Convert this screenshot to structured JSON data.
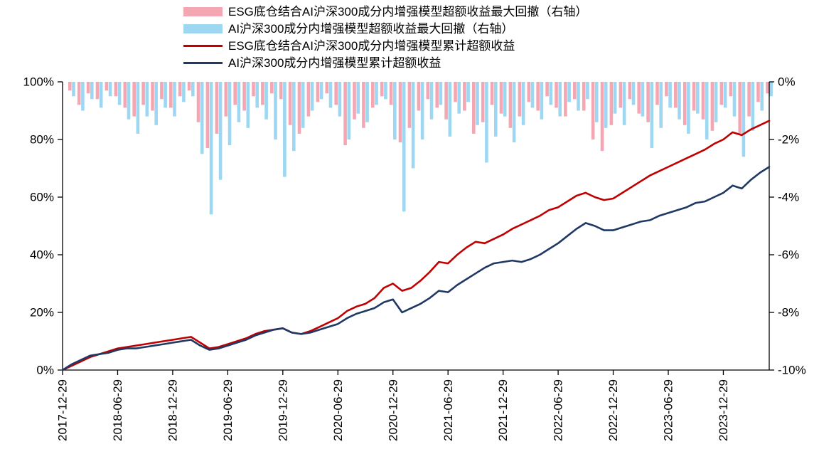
{
  "chart_data": {
    "type": "combo",
    "title": "",
    "legend_position": "top",
    "grid": false,
    "x": [
      "2017-12",
      "2018-01",
      "2018-02",
      "2018-03",
      "2018-04",
      "2018-05",
      "2018-06",
      "2018-07",
      "2018-08",
      "2018-09",
      "2018-10",
      "2018-11",
      "2018-12",
      "2019-01",
      "2019-02",
      "2019-03",
      "2019-04",
      "2019-05",
      "2019-06",
      "2019-07",
      "2019-08",
      "2019-09",
      "2019-10",
      "2019-11",
      "2019-12",
      "2020-01",
      "2020-02",
      "2020-03",
      "2020-04",
      "2020-05",
      "2020-06",
      "2020-07",
      "2020-08",
      "2020-09",
      "2020-10",
      "2020-11",
      "2020-12",
      "2021-01",
      "2021-02",
      "2021-03",
      "2021-04",
      "2021-05",
      "2021-06",
      "2021-07",
      "2021-08",
      "2021-09",
      "2021-10",
      "2021-11",
      "2021-12",
      "2022-01",
      "2022-02",
      "2022-03",
      "2022-04",
      "2022-05",
      "2022-06",
      "2022-07",
      "2022-08",
      "2022-09",
      "2022-10",
      "2022-11",
      "2022-12",
      "2023-01",
      "2023-02",
      "2023-03",
      "2023-04",
      "2023-05",
      "2023-06",
      "2023-07",
      "2023-08",
      "2023-09",
      "2023-10",
      "2023-11",
      "2023-12",
      "2024-01",
      "2024-02",
      "2024-03",
      "2024-04",
      "2024-05"
    ],
    "x_tick_labels": [
      "2017-12-29",
      "2018-06-29",
      "2018-12-29",
      "2019-06-29",
      "2019-12-29",
      "2020-06-29",
      "2020-12-29",
      "2021-06-29",
      "2021-12-29",
      "2022-06-29",
      "2022-12-29",
      "2023-06-29",
      "2023-12-29"
    ],
    "left_axis": {
      "min": 0,
      "max": 100,
      "tick_values": [
        0,
        20,
        40,
        60,
        80,
        100
      ],
      "tick_labels": [
        "0%",
        "20%",
        "40%",
        "60%",
        "80%",
        "100%"
      ]
    },
    "right_axis": {
      "min": -10,
      "max": 0,
      "tick_values": [
        0,
        -2,
        -4,
        -6,
        -8,
        -10
      ],
      "tick_labels": [
        "0%",
        "-2%",
        "-4%",
        "-6%",
        "-8%",
        "-10%"
      ]
    },
    "series": [
      {
        "id": "esg-max-drawdown",
        "name": "ESG底仓结合AI沪深300成分内增强模型超额收益最大回撤（右轴）",
        "type": "bar",
        "axis": "right",
        "color": "#F4A6B2",
        "values": [
          0,
          -0.3,
          -0.8,
          -0.4,
          -0.6,
          -0.3,
          -0.5,
          -0.9,
          -1.2,
          -0.8,
          -1.0,
          -0.6,
          -0.9,
          -0.5,
          -0.3,
          -1.4,
          -2.3,
          -1.8,
          -1.2,
          -0.8,
          -1.0,
          -0.5,
          -0.8,
          -0.4,
          -0.6,
          -1.5,
          -1.8,
          -1.2,
          -0.7,
          -0.4,
          -0.8,
          -2.2,
          -1.3,
          -1.6,
          -0.9,
          -0.5,
          -0.8,
          -2.1,
          -1.6,
          -1.0,
          -0.6,
          -0.9,
          -1.3,
          -0.7,
          -1.0,
          -1.8,
          -1.4,
          -0.8,
          -1.1,
          -1.6,
          -1.2,
          -0.7,
          -1.0,
          -0.5,
          -0.9,
          -1.2,
          -0.6,
          -1.0,
          -2.0,
          -2.4,
          -1.5,
          -0.9,
          -0.6,
          -1.1,
          -1.4,
          -0.8,
          -0.5,
          -0.9,
          -1.5,
          -1.0,
          -1.3,
          -1.7,
          -0.8,
          -0.5,
          -1.8,
          -1.2,
          -0.7,
          -0.4
        ]
      },
      {
        "id": "ai-max-drawdown",
        "name": "AI沪深300成分内增强模型超额收益最大回撤（右轴）",
        "type": "bar",
        "axis": "right",
        "color": "#9DD7F2",
        "values": [
          0,
          -0.5,
          -1.0,
          -0.6,
          -0.9,
          -0.5,
          -0.8,
          -1.3,
          -1.8,
          -1.2,
          -1.5,
          -0.9,
          -1.2,
          -0.7,
          -0.5,
          -2.5,
          -4.6,
          -3.4,
          -2.2,
          -1.4,
          -1.6,
          -0.9,
          -1.3,
          -2.0,
          -3.3,
          -2.4,
          -1.6,
          -1.0,
          -0.6,
          -0.9,
          -1.2,
          -2.0,
          -1.1,
          -1.4,
          -0.8,
          -0.6,
          -2.0,
          -4.5,
          -3.0,
          -2.0,
          -1.3,
          -0.8,
          -1.9,
          -1.1,
          -0.7,
          -1.5,
          -2.8,
          -1.9,
          -1.2,
          -2.1,
          -1.5,
          -0.9,
          -1.3,
          -0.8,
          -1.2,
          -0.7,
          -1.0,
          -0.6,
          -1.4,
          -1.6,
          -1.1,
          -1.5,
          -0.8,
          -1.2,
          -2.3,
          -1.6,
          -0.9,
          -1.3,
          -1.8,
          -1.1,
          -2.0,
          -1.4,
          -0.9,
          -1.2,
          -2.6,
          -1.7,
          -1.0,
          -0.5
        ]
      },
      {
        "id": "esg-cumulative-excess",
        "name": "ESG底仓结合AI沪深300成分内增强模型累计超额收益",
        "type": "line",
        "axis": "left",
        "color": "#C00000",
        "values": [
          0,
          1.5,
          3,
          4.5,
          5.5,
          6.5,
          7.5,
          8,
          8.5,
          9,
          9.5,
          10,
          10.5,
          11,
          11.5,
          9.5,
          7.5,
          8,
          9,
          10,
          11,
          12.5,
          13.5,
          14,
          14.5,
          13,
          12.5,
          13.5,
          15,
          16.5,
          18,
          20.5,
          22,
          23,
          25,
          28.5,
          30,
          27.5,
          28.5,
          31,
          34,
          37.5,
          37,
          40,
          42.5,
          44.5,
          44,
          45.5,
          47,
          49,
          50.5,
          52,
          53.5,
          55.5,
          56.5,
          58.5,
          60.5,
          61.5,
          60,
          59,
          59.5,
          61.5,
          63.5,
          65.5,
          67.5,
          69,
          70.5,
          72,
          73.5,
          75,
          76.5,
          78.5,
          80,
          82.5,
          81.5,
          83.5,
          85,
          86.5
        ]
      },
      {
        "id": "ai-cumulative-excess",
        "name": "AI沪深300成分内增强模型累计超额收益",
        "type": "line",
        "axis": "left",
        "color": "#1F3864",
        "values": [
          0,
          2,
          3.5,
          5,
          5.5,
          6,
          7,
          7.5,
          7.5,
          8,
          8.5,
          9,
          9.5,
          10,
          10.5,
          8.5,
          7,
          7.5,
          8.5,
          9.5,
          10.5,
          12,
          13,
          14,
          14.5,
          13,
          12.5,
          13,
          14,
          15,
          16,
          18,
          19.5,
          20.5,
          21.5,
          23.5,
          24.5,
          20,
          21.5,
          23,
          25,
          27.5,
          27,
          29.5,
          31.5,
          33.5,
          35.5,
          37,
          37.5,
          38,
          37.5,
          38.5,
          40,
          42,
          44,
          46.5,
          49,
          51,
          50,
          48.5,
          48.5,
          49.5,
          50.5,
          51.5,
          52,
          53.5,
          54.5,
          55.5,
          56.5,
          58,
          58.5,
          60,
          61.5,
          64,
          63,
          66,
          68.5,
          70.5
        ]
      }
    ]
  }
}
